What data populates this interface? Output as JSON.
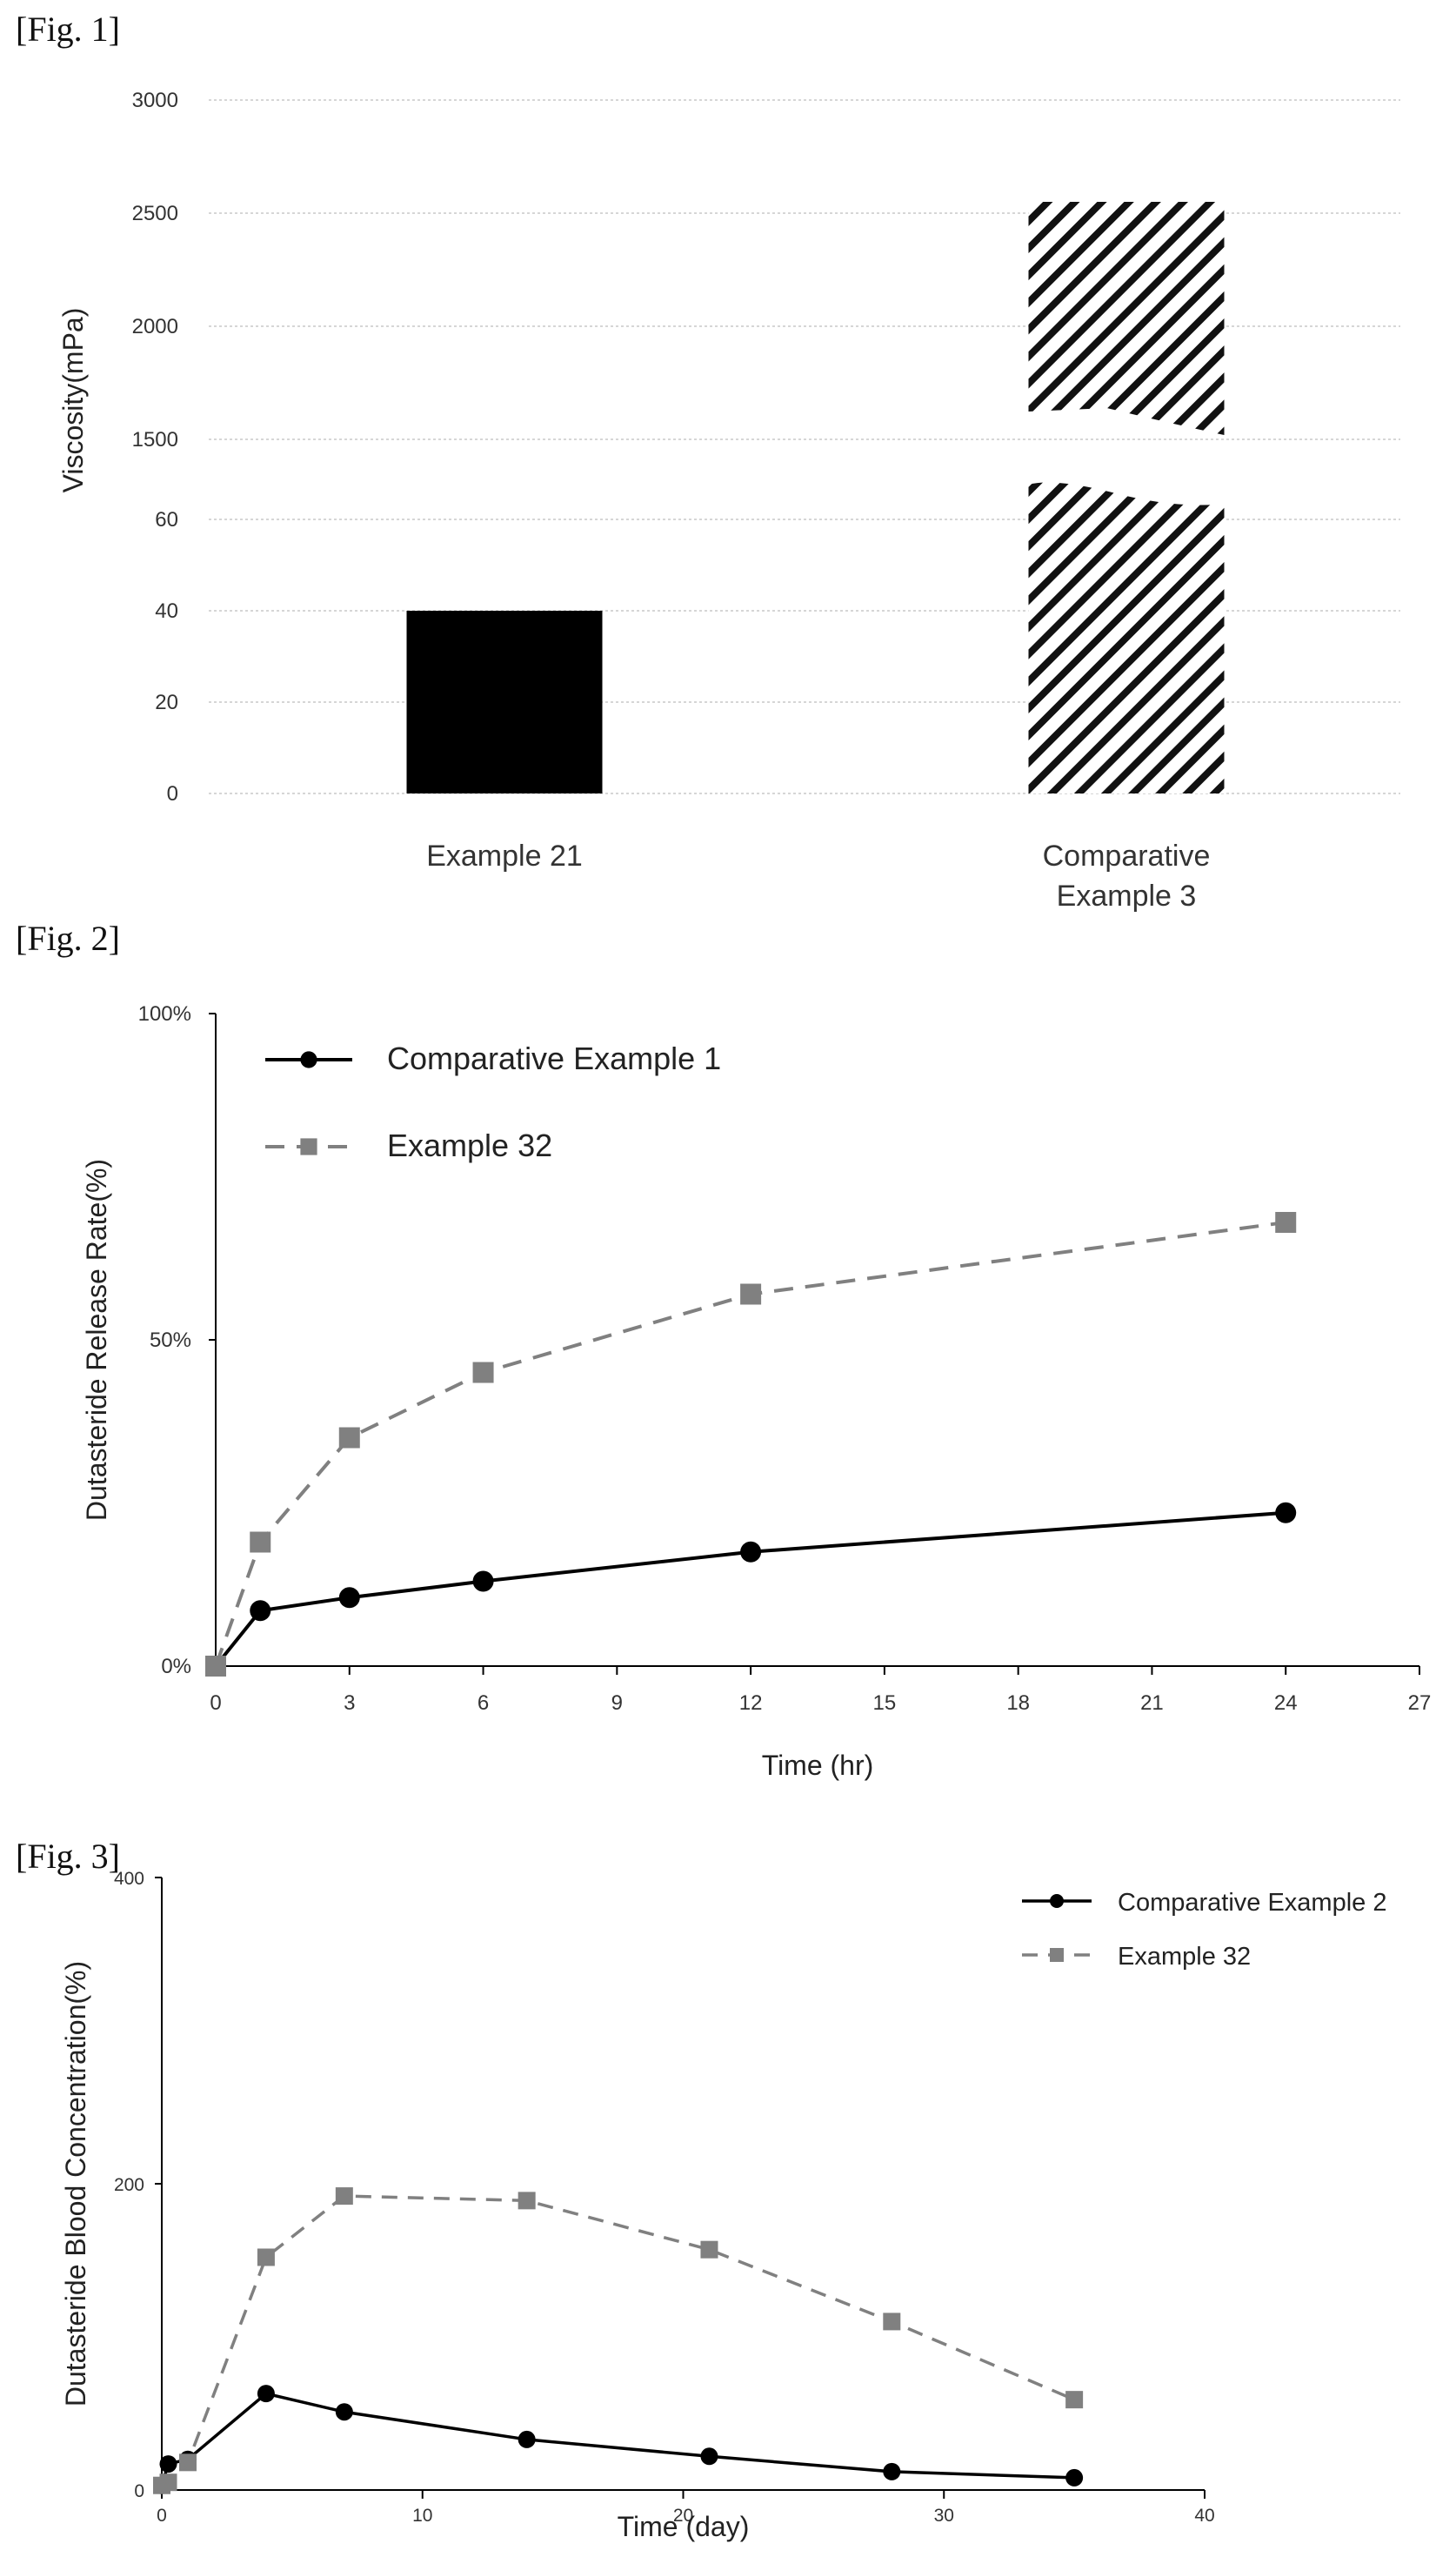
{
  "figures": {
    "fig1_label": "[Fig. 1]",
    "fig2_label": "[Fig. 2]",
    "fig3_label": "[Fig. 3]"
  },
  "chart_data": [
    {
      "type": "bar",
      "ylabel": "Viscosity(mPa)",
      "xlabel": "",
      "axis_break": true,
      "lower_ticks": [
        0,
        20,
        40,
        60
      ],
      "upper_ticks": [
        1500,
        2000,
        2500,
        3000
      ],
      "lower_ylim": [
        0,
        60
      ],
      "upper_ylim": [
        1500,
        3000
      ],
      "categories": [
        "Example 21",
        "Comparative Example 3"
      ],
      "category_label_lines": [
        [
          "Example 21"
        ],
        [
          "Comparative",
          "Example 3"
        ]
      ],
      "values": [
        40,
        2550
      ],
      "bar_styles": [
        "solid-black",
        "diagonal-hatch"
      ],
      "grid": true
    },
    {
      "type": "line",
      "xlabel": "Time (hr)",
      "ylabel": "Dutasteride Release Rate(%)",
      "xlim": [
        0,
        27
      ],
      "ylim": [
        0,
        100
      ],
      "x_ticks": [
        0,
        3,
        6,
        9,
        12,
        15,
        18,
        21,
        24,
        27
      ],
      "y_ticks": [
        0,
        50,
        100
      ],
      "y_tick_labels": [
        "0%",
        "50%",
        "100%"
      ],
      "legend_position": "top-left",
      "grid": false,
      "series": [
        {
          "name": "Comparative Example 1",
          "style": "solid",
          "marker": "circle",
          "color": "#000000",
          "x": [
            0,
            1,
            3,
            6,
            12,
            24
          ],
          "y": [
            0,
            8.5,
            10.5,
            13,
            17.5,
            23.5
          ]
        },
        {
          "name": "Example 32",
          "style": "dashed",
          "marker": "square",
          "color": "#808080",
          "x": [
            0,
            1,
            3,
            6,
            12,
            24
          ],
          "y": [
            0,
            19,
            35,
            45,
            57,
            68
          ]
        }
      ]
    },
    {
      "type": "line",
      "xlabel": "Time (day)",
      "ylabel": "Dutasteride Blood Concentration(%)",
      "xlim": [
        0,
        40
      ],
      "ylim": [
        0,
        400
      ],
      "x_ticks": [
        0,
        10,
        20,
        30,
        40
      ],
      "y_ticks": [
        0,
        200,
        400
      ],
      "legend_position": "top-right",
      "grid": false,
      "series": [
        {
          "name": "Comparative Example 2",
          "style": "solid",
          "marker": "circle",
          "color": "#000000",
          "x": [
            0,
            0.25,
            1,
            4,
            7,
            14,
            21,
            28,
            35
          ],
          "y": [
            3,
            17,
            20,
            63,
            51,
            33,
            22,
            12,
            8
          ]
        },
        {
          "name": "Example 32",
          "style": "dashed",
          "marker": "square",
          "color": "#808080",
          "x": [
            0,
            0.25,
            1,
            4,
            7,
            14,
            21,
            28,
            35
          ],
          "y": [
            3,
            5,
            18,
            152,
            192,
            189,
            157,
            110,
            59
          ]
        }
      ]
    }
  ]
}
